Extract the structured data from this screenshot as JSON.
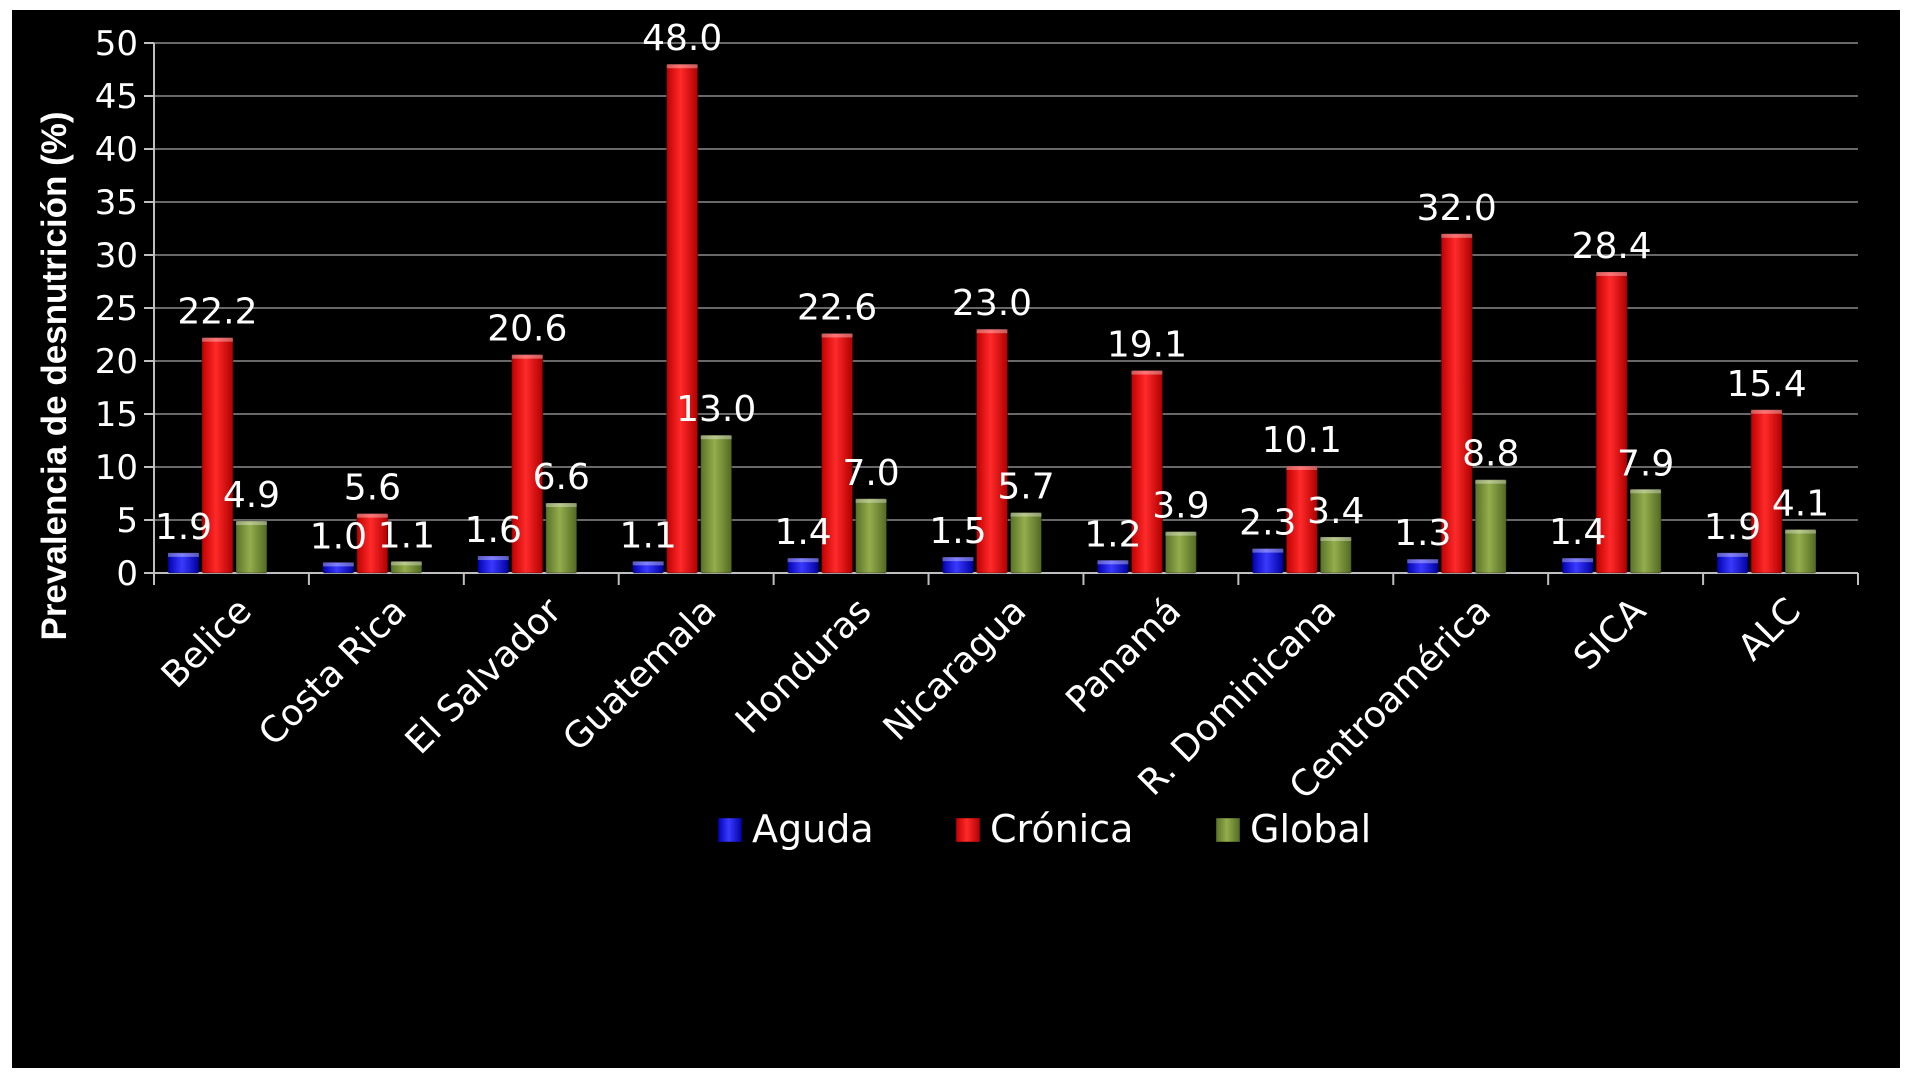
{
  "chart_data": {
    "type": "bar",
    "title": "",
    "xlabel": "",
    "ylabel": "Prevalencia de desnutrición (%)",
    "ylim": [
      0,
      50
    ],
    "yticks": [
      0,
      5,
      10,
      15,
      20,
      25,
      30,
      35,
      40,
      45,
      50
    ],
    "grid": true,
    "legend_position": "bottom",
    "categories": [
      "Belice",
      "Costa Rica",
      "El Salvador",
      "Guatemala",
      "Honduras",
      "Nicaragua",
      "Panamá",
      "R. Dominicana",
      "Centroamérica",
      "SICA",
      "ALC"
    ],
    "series": [
      {
        "name": "Aguda",
        "color": "#1a1aff",
        "values": [
          1.9,
          1.0,
          1.6,
          1.1,
          1.4,
          1.5,
          1.2,
          2.3,
          1.3,
          1.4,
          1.9
        ]
      },
      {
        "name": "Crónica",
        "color": "#ff1a1a",
        "values": [
          22.2,
          5.6,
          20.6,
          48.0,
          22.6,
          23.0,
          19.1,
          10.1,
          32.0,
          28.4,
          15.4
        ]
      },
      {
        "name": "Global",
        "color": "#7f9a3a",
        "values": [
          4.9,
          1.1,
          6.6,
          13.0,
          7.0,
          5.7,
          3.9,
          3.4,
          8.8,
          7.9,
          4.1
        ]
      }
    ]
  }
}
